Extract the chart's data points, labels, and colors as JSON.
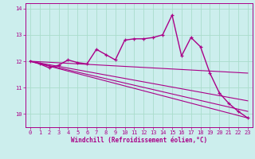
{
  "title": "",
  "xlabel": "Windchill (Refroidissement éolien,°C)",
  "ylabel": "",
  "background_color": "#cceeed",
  "grid_color": "#aaddcc",
  "line_color": "#aa0088",
  "xlim": [
    -0.5,
    23.5
  ],
  "ylim": [
    9.5,
    14.2
  ],
  "yticks": [
    10,
    11,
    12,
    13,
    14
  ],
  "xticks": [
    0,
    1,
    2,
    3,
    4,
    5,
    6,
    7,
    8,
    9,
    10,
    11,
    12,
    13,
    14,
    15,
    16,
    17,
    18,
    19,
    20,
    21,
    22,
    23
  ],
  "series_main": {
    "x": [
      0,
      1,
      2,
      3,
      4,
      5,
      6,
      7,
      8,
      9,
      10,
      11,
      12,
      13,
      14,
      15,
      16,
      17,
      18,
      19,
      20,
      21,
      22,
      23
    ],
    "y": [
      12.0,
      11.9,
      11.75,
      11.85,
      12.05,
      11.95,
      11.9,
      12.45,
      12.25,
      12.05,
      12.8,
      12.85,
      12.85,
      12.9,
      13.0,
      13.75,
      12.2,
      12.9,
      12.55,
      11.55,
      10.8,
      10.4,
      10.1,
      9.85
    ]
  },
  "fan_lines": [
    {
      "x": [
        0,
        23
      ],
      "y": [
        12.0,
        9.85
      ]
    },
    {
      "x": [
        0,
        23
      ],
      "y": [
        12.0,
        10.1
      ]
    },
    {
      "x": [
        0,
        23
      ],
      "y": [
        12.0,
        10.5
      ]
    },
    {
      "x": [
        0,
        23
      ],
      "y": [
        12.0,
        11.55
      ]
    }
  ]
}
